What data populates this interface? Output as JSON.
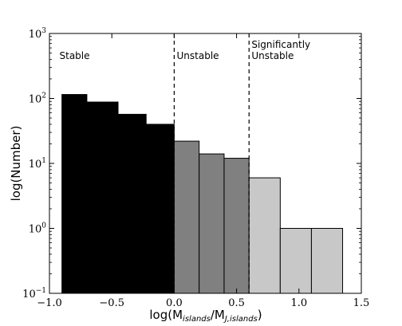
{
  "chart_data": {
    "type": "bar",
    "subtype": "histogram",
    "xlabel": {
      "main": "log(M",
      "sub1": "islands",
      "mid": "/M",
      "sub2": "J,islands",
      "end": ")"
    },
    "ylabel": "log(Number)",
    "xlim": [
      -1.0,
      1.5
    ],
    "ylim": [
      0.1,
      1000
    ],
    "yscale": "log",
    "grid": false,
    "xticks": [
      {
        "value": -1.0,
        "label": "−1.0"
      },
      {
        "value": -0.5,
        "label": "−0.5"
      },
      {
        "value": 0.0,
        "label": "0.0"
      },
      {
        "value": 0.5,
        "label": "0.5"
      },
      {
        "value": 1.0,
        "label": "1.0"
      },
      {
        "value": 1.5,
        "label": "1.5"
      }
    ],
    "yticks": [
      {
        "value": 0.1,
        "base": "10",
        "exp": "−1"
      },
      {
        "value": 1,
        "base": "10",
        "exp": "0"
      },
      {
        "value": 10,
        "base": "10",
        "exp": "1"
      },
      {
        "value": 100,
        "base": "10",
        "exp": "2"
      },
      {
        "value": 1000,
        "base": "10",
        "exp": "3"
      }
    ],
    "bins": [
      {
        "x0": -0.9,
        "x1": -0.7,
        "value": 115,
        "group": "stable"
      },
      {
        "x0": -0.7,
        "x1": -0.45,
        "value": 88,
        "group": "stable"
      },
      {
        "x0": -0.45,
        "x1": -0.225,
        "value": 57,
        "group": "stable"
      },
      {
        "x0": -0.225,
        "x1": 0.0,
        "value": 40,
        "group": "stable"
      },
      {
        "x0": 0.0,
        "x1": 0.2,
        "value": 22,
        "group": "unstable"
      },
      {
        "x0": 0.2,
        "x1": 0.4,
        "value": 14,
        "group": "unstable"
      },
      {
        "x0": 0.4,
        "x1": 0.6,
        "value": 12,
        "group": "unstable"
      },
      {
        "x0": 0.6,
        "x1": 0.85,
        "value": 6,
        "group": "significantly_unstable"
      },
      {
        "x0": 0.85,
        "x1": 1.1,
        "value": 1,
        "group": "significantly_unstable"
      },
      {
        "x0": 1.1,
        "x1": 1.35,
        "value": 1,
        "group": "significantly_unstable"
      }
    ],
    "group_colors": {
      "stable": "#000000",
      "unstable": "#808080",
      "significantly_unstable": "#c8c8c8"
    },
    "dividers": [
      0.0,
      0.6
    ],
    "regions": [
      {
        "lines": [
          "Stable"
        ],
        "x": -0.92
      },
      {
        "lines": [
          "Unstable"
        ],
        "x": 0.02
      },
      {
        "lines": [
          "Significantly",
          "Unstable"
        ],
        "x": 0.62
      }
    ]
  }
}
